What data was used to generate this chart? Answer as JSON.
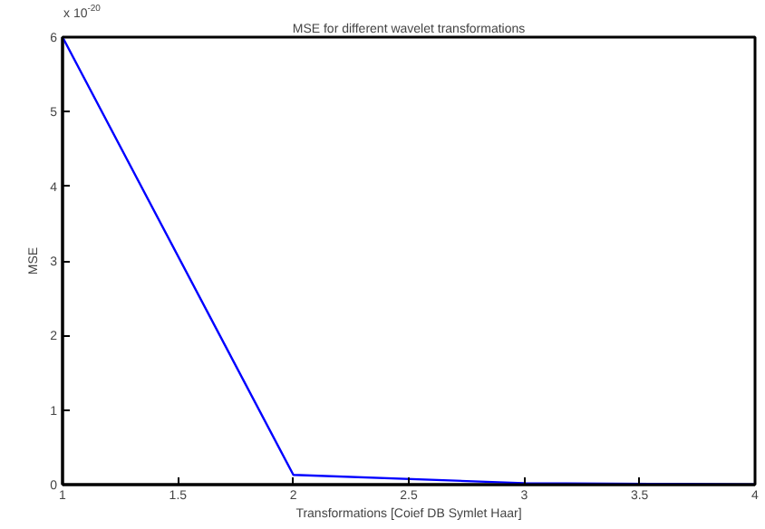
{
  "chart_data": {
    "type": "line",
    "title": "MSE for different wavelet transformations",
    "xlabel": "Transformations [Coief DB Symlet Haar]",
    "ylabel": "MSE",
    "annotations": [
      "x 10$^{-20}$"
    ],
    "x": [
      1,
      2,
      3,
      4
    ],
    "series": [
      {
        "color": "#0000ff",
        "values": [
          6,
          0.13,
          0.02,
          0
        ]
      }
    ],
    "xlim": [
      1,
      4
    ],
    "ylim": [
      0,
      6
    ],
    "xticks": [
      1,
      1.5,
      2,
      2.5,
      3,
      3.5,
      4
    ],
    "yticks": [
      0,
      1,
      2,
      3,
      4,
      5,
      6
    ],
    "grid": false,
    "marker": "none",
    "line_style": "solid"
  }
}
